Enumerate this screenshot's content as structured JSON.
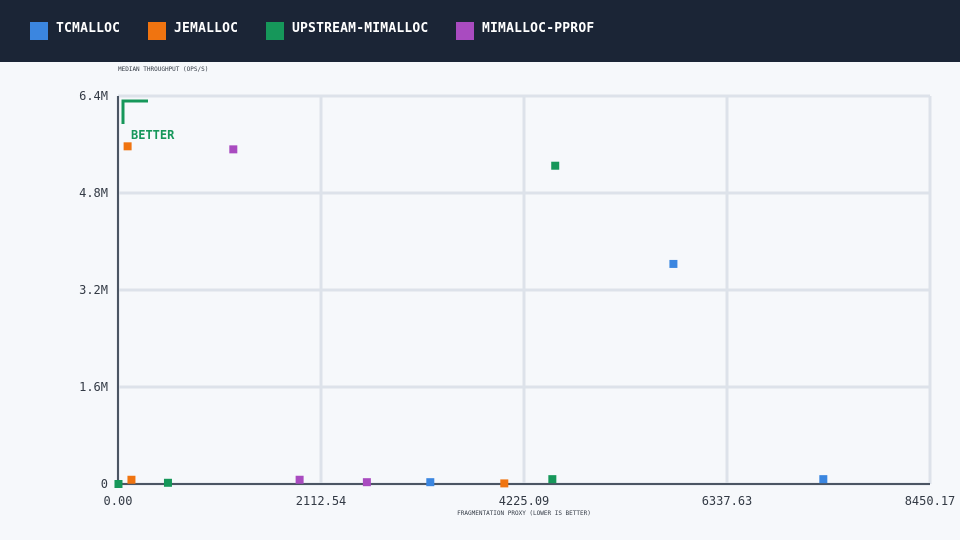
{
  "legend": [
    {
      "label": "TCMALLOC",
      "color": "#3b86e0"
    },
    {
      "label": "JEMALLOC",
      "color": "#f07410"
    },
    {
      "label": "UPSTREAM-MIMALLOC",
      "color": "#16975a"
    },
    {
      "label": "MIMALLOC-PPROF",
      "color": "#a94bc0"
    }
  ],
  "chart_data": {
    "type": "scatter",
    "title": "",
    "xlabel": "FRAGMENTATION PROXY (LOWER IS BETTER)",
    "ylabel": "MEDIAN THROUGHPUT (OPS/S)",
    "xlim": [
      0,
      8450.17
    ],
    "ylim": [
      0,
      6400000
    ],
    "x_ticks": [
      "0.00",
      "2112.54",
      "4225.09",
      "6337.63",
      "8450.17"
    ],
    "y_ticks": [
      "0",
      "1.6M",
      "3.2M",
      "4.8M",
      "6.4M"
    ],
    "grid": true,
    "annotation": "BETTER",
    "series": [
      {
        "name": "TCMALLOC",
        "color": "#3b86e0",
        "points": [
          [
            3250,
            30000
          ],
          [
            5780,
            3630000
          ],
          [
            7340,
            80000
          ]
        ]
      },
      {
        "name": "JEMALLOC",
        "color": "#f07410",
        "points": [
          [
            100,
            5570000
          ],
          [
            140,
            70000
          ],
          [
            4020,
            10000
          ]
        ]
      },
      {
        "name": "UPSTREAM-MIMALLOC",
        "color": "#16975a",
        "points": [
          [
            5,
            0
          ],
          [
            520,
            20000
          ],
          [
            4520,
            80000
          ],
          [
            4550,
            5250000
          ]
        ]
      },
      {
        "name": "MIMALLOC-PPROF",
        "color": "#a94bc0",
        "points": [
          [
            1200,
            5520000
          ],
          [
            1890,
            70000
          ],
          [
            2590,
            30000
          ]
        ]
      }
    ]
  }
}
